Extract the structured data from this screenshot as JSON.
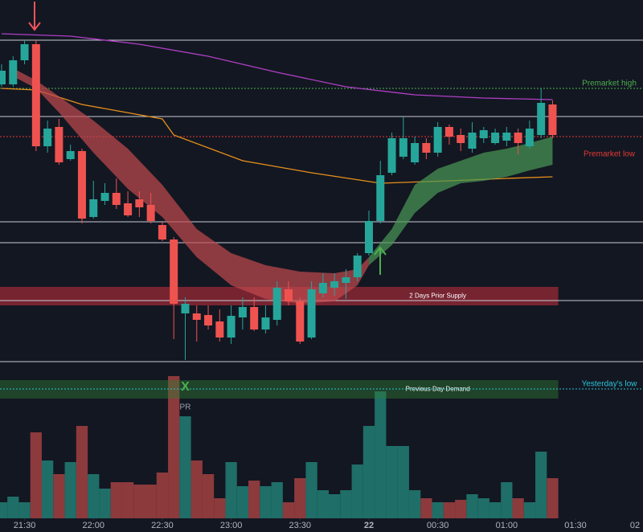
{
  "chart_data": {
    "type": "candlestick",
    "xlim": [
      -0.14,
      55.88
    ],
    "ylim": [
      -202,
      460
    ],
    "xticks": [
      {
        "value": 2,
        "label": "21:30"
      },
      {
        "value": 8,
        "label": "22:00"
      },
      {
        "value": 14,
        "label": "22:30"
      },
      {
        "value": 20,
        "label": "23:00"
      },
      {
        "value": 26,
        "label": "23:30"
      },
      {
        "value": 32,
        "label": "22"
      },
      {
        "value": 38,
        "label": "00:30"
      },
      {
        "value": 44,
        "label": "01:00"
      },
      {
        "value": 50,
        "label": "01:30"
      },
      {
        "value": 56,
        "label": "02"
      }
    ],
    "open": [
      355,
      355,
      385,
      405,
      278,
      302,
      262,
      272,
      190,
      210,
      220,
      207,
      212,
      205,
      180,
      162,
      70,
      70,
      68,
      60,
      40,
      65,
      78,
      50,
      62,
      100,
      85,
      40,
      95,
      102,
      108,
      115,
      145,
      185,
      245,
      265,
      258,
      282,
      270,
      302,
      292,
      275,
      288,
      282,
      285,
      295,
      278,
      292,
      330
    ],
    "close": [
      372,
      385,
      405,
      278,
      300,
      258,
      272,
      188,
      212,
      220,
      205,
      192,
      202,
      185,
      162,
      82,
      82,
      62,
      55,
      40,
      67,
      78,
      50,
      65,
      102,
      85,
      35,
      100,
      108,
      110,
      115,
      142,
      185,
      242,
      288,
      288,
      282,
      270,
      302,
      290,
      282,
      295,
      298,
      295,
      295,
      282,
      300,
      332,
      292
    ],
    "high": [
      380,
      390,
      410,
      410,
      310,
      312,
      280,
      275,
      235,
      232,
      238,
      222,
      222,
      220,
      185,
      165,
      90,
      80,
      80,
      75,
      80,
      90,
      90,
      80,
      110,
      110,
      90,
      110,
      120,
      120,
      125,
      145,
      198,
      260,
      295,
      315,
      290,
      288,
      308,
      305,
      300,
      308,
      302,
      300,
      302,
      300,
      310,
      350,
      335
    ],
    "low": [
      352,
      352,
      380,
      272,
      270,
      255,
      260,
      182,
      188,
      205,
      200,
      190,
      190,
      182,
      160,
      38,
      12,
      35,
      50,
      35,
      32,
      50,
      48,
      45,
      55,
      80,
      32,
      38,
      90,
      92,
      88,
      110,
      142,
      182,
      242,
      262,
      255,
      262,
      265,
      280,
      272,
      270,
      282,
      280,
      278,
      268,
      275,
      288,
      288
    ],
    "up_color": "#26a69a",
    "down_color": "#ef5350",
    "volume": {
      "values": [
        20,
        27,
        20,
        107,
        72,
        55,
        70,
        115,
        55,
        37,
        45,
        45,
        42,
        42,
        57,
        177,
        127,
        72,
        55,
        25,
        70,
        40,
        47,
        40,
        45,
        20,
        50,
        70,
        35,
        30,
        35,
        67,
        115,
        158,
        90,
        90,
        35,
        25,
        20,
        20,
        23,
        30,
        25,
        20,
        45,
        25,
        20,
        83,
        50
      ],
      "ylim": [
        0,
        645
      ],
      "up_color": "#1f6e68",
      "down_color": "#8c3a3c"
    },
    "indicators": [
      {
        "type": "line",
        "color": "#b03fc4",
        "x": [
          0,
          6,
          12,
          18,
          24,
          30,
          36,
          42,
          48
        ],
        "values": [
          418,
          415,
          405,
          390,
          370,
          352,
          342,
          338,
          336
        ]
      },
      {
        "type": "line",
        "color": "#e8901a",
        "x": [
          0,
          3,
          7,
          14,
          15,
          21,
          27,
          33,
          39,
          44,
          48
        ],
        "values": [
          350,
          348,
          330,
          312,
          292,
          260,
          245,
          232,
          235,
          238,
          240
        ]
      },
      {
        "type": "band",
        "color": "#c24a4f",
        "x": [
          1,
          3,
          5,
          8,
          11,
          14,
          17,
          20,
          23,
          26,
          29,
          31,
          32
        ],
        "upper": [
          375,
          360,
          340,
          310,
          275,
          230,
          175,
          145,
          130,
          122,
          120,
          125,
          140
        ],
        "lower": [
          365,
          350,
          320,
          270,
          225,
          190,
          140,
          105,
          88,
          82,
          85,
          105,
          130
        ]
      },
      {
        "type": "band",
        "color": "#4a9a55",
        "x": [
          32,
          34,
          36,
          38,
          40,
          42,
          44,
          46,
          48
        ],
        "upper": [
          140,
          175,
          230,
          250,
          260,
          270,
          275,
          282,
          290
        ],
        "lower": [
          130,
          155,
          195,
          220,
          232,
          235,
          240,
          248,
          255
        ]
      }
    ],
    "levels": [
      {
        "value": 410,
        "color": "#c8cbd3",
        "style": "solid"
      },
      {
        "value": 315,
        "color": "#c8cbd3",
        "style": "solid"
      },
      {
        "value": 184,
        "color": "#c8cbd3",
        "style": "solid"
      },
      {
        "value": 158,
        "color": "#c8cbd3",
        "style": "solid"
      },
      {
        "value": 86,
        "color": "#c8cbd3",
        "style": "solid"
      },
      {
        "value": 10,
        "color": "#c8cbd3",
        "style": "solid"
      },
      {
        "value": 350,
        "color": "#4caf50",
        "style": "dotted",
        "label": "Premarket high"
      },
      {
        "value": 290,
        "color": "#e53935",
        "style": "dotted",
        "label": "Premarket low"
      },
      {
        "value": -24,
        "color": "#26c6da",
        "style": "dotted",
        "label": "Yesterday's low"
      }
    ],
    "zones": [
      {
        "top": 103,
        "bottom": 80,
        "color": "#f23645",
        "label": "2 Days Prior Supply"
      },
      {
        "top": -13,
        "bottom": -36,
        "color": "#2e7d32",
        "label": "Previous Day Demand"
      }
    ],
    "annotations": [
      {
        "text": "X",
        "x": 16,
        "y": -22,
        "color": "#4caf50"
      },
      {
        "text": "PR",
        "x": 16,
        "y": -47,
        "color": "#9aa0aa"
      }
    ]
  }
}
